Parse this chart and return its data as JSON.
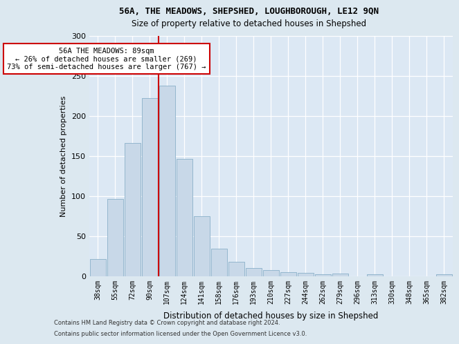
{
  "title1": "56A, THE MEADOWS, SHEPSHED, LOUGHBOROUGH, LE12 9QN",
  "title2": "Size of property relative to detached houses in Shepshed",
  "xlabel": "Distribution of detached houses by size in Shepshed",
  "ylabel": "Number of detached properties",
  "categories": [
    "38sqm",
    "55sqm",
    "72sqm",
    "90sqm",
    "107sqm",
    "124sqm",
    "141sqm",
    "158sqm",
    "176sqm",
    "193sqm",
    "210sqm",
    "227sqm",
    "244sqm",
    "262sqm",
    "279sqm",
    "296sqm",
    "313sqm",
    "330sqm",
    "348sqm",
    "365sqm",
    "382sqm"
  ],
  "bar_heights": [
    21,
    96,
    166,
    222,
    238,
    146,
    75,
    34,
    18,
    10,
    7,
    5,
    4,
    2,
    3,
    0,
    2,
    0,
    0,
    0,
    2
  ],
  "bar_color": "#c8d8e8",
  "bar_edge_color": "#8ab0c8",
  "vline_x": 3.5,
  "vline_color": "#cc0000",
  "annotation_line1": "56A THE MEADOWS: 89sqm",
  "annotation_line2": "← 26% of detached houses are smaller (269)",
  "annotation_line3": "73% of semi-detached houses are larger (767) →",
  "annotation_box_facecolor": "#ffffff",
  "annotation_box_edgecolor": "#cc0000",
  "ylim": [
    0,
    300
  ],
  "yticks": [
    0,
    50,
    100,
    150,
    200,
    250,
    300
  ],
  "fig_bg_color": "#dce8f0",
  "plot_bg_color": "#dce8f4",
  "footer1": "Contains HM Land Registry data © Crown copyright and database right 2024.",
  "footer2": "Contains public sector information licensed under the Open Government Licence v3.0."
}
